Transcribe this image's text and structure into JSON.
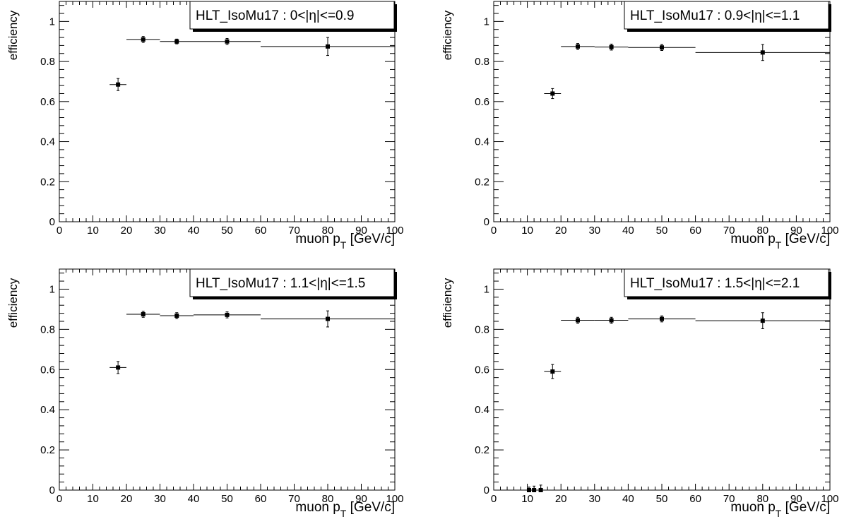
{
  "chart_data": [
    {
      "type": "scatter",
      "legend": "HLT_IsoMu17 : 0<|η|<=0.9",
      "xlabel": "muon p_T [GeV/c]",
      "ylabel": "efficiency",
      "xlim": [
        0,
        100
      ],
      "ylim": [
        0,
        1.1
      ],
      "xticks": [
        0,
        10,
        20,
        30,
        40,
        50,
        60,
        70,
        80,
        90,
        100
      ],
      "yticks": [
        0,
        0.2,
        0.4,
        0.6,
        0.8,
        1
      ],
      "points": [
        {
          "x": 17.5,
          "xerr": 2.5,
          "y": 0.685,
          "yerr": 0.03
        },
        {
          "x": 25,
          "xerr": 5,
          "y": 0.91,
          "yerr": 0.015
        },
        {
          "x": 35,
          "xerr": 5,
          "y": 0.9,
          "yerr": 0.012
        },
        {
          "x": 50,
          "xerr": 10,
          "y": 0.9,
          "yerr": 0.015
        },
        {
          "x": 80,
          "xerr": 20,
          "y": 0.875,
          "yerr": 0.045
        }
      ]
    },
    {
      "type": "scatter",
      "legend": "HLT_IsoMu17 : 0.9<|η|<=1.1",
      "xlabel": "muon p_T [GeV/c]",
      "ylabel": "efficiency",
      "xlim": [
        0,
        100
      ],
      "ylim": [
        0,
        1.1
      ],
      "xticks": [
        0,
        10,
        20,
        30,
        40,
        50,
        60,
        70,
        80,
        90,
        100
      ],
      "yticks": [
        0,
        0.2,
        0.4,
        0.6,
        0.8,
        1
      ],
      "points": [
        {
          "x": 17.5,
          "xerr": 2.5,
          "y": 0.64,
          "yerr": 0.025
        },
        {
          "x": 25,
          "xerr": 5,
          "y": 0.875,
          "yerr": 0.015
        },
        {
          "x": 35,
          "xerr": 5,
          "y": 0.872,
          "yerr": 0.015
        },
        {
          "x": 50,
          "xerr": 10,
          "y": 0.87,
          "yerr": 0.015
        },
        {
          "x": 80,
          "xerr": 20,
          "y": 0.845,
          "yerr": 0.04
        }
      ]
    },
    {
      "type": "scatter",
      "legend": "HLT_IsoMu17 : 1.1<|η|<=1.5",
      "xlabel": "muon p_T [GeV/c]",
      "ylabel": "efficiency",
      "xlim": [
        0,
        100
      ],
      "ylim": [
        0,
        1.1
      ],
      "xticks": [
        0,
        10,
        20,
        30,
        40,
        50,
        60,
        70,
        80,
        90,
        100
      ],
      "yticks": [
        0,
        0.2,
        0.4,
        0.6,
        0.8,
        1
      ],
      "points": [
        {
          "x": 17.5,
          "xerr": 2.5,
          "y": 0.61,
          "yerr": 0.03
        },
        {
          "x": 25,
          "xerr": 5,
          "y": 0.875,
          "yerr": 0.015
        },
        {
          "x": 35,
          "xerr": 5,
          "y": 0.868,
          "yerr": 0.015
        },
        {
          "x": 50,
          "xerr": 10,
          "y": 0.872,
          "yerr": 0.015
        },
        {
          "x": 80,
          "xerr": 20,
          "y": 0.852,
          "yerr": 0.04
        }
      ]
    },
    {
      "type": "scatter",
      "legend": "HLT_IsoMu17 : 1.5<|η|<=2.1",
      "xlabel": "muon p_T [GeV/c]",
      "ylabel": "efficiency",
      "xlim": [
        0,
        100
      ],
      "ylim": [
        0,
        1.1
      ],
      "xticks": [
        0,
        10,
        20,
        30,
        40,
        50,
        60,
        70,
        80,
        90,
        100
      ],
      "yticks": [
        0,
        0.2,
        0.4,
        0.6,
        0.8,
        1
      ],
      "points": [
        {
          "x": 10.5,
          "xerr": 0.5,
          "y": 0.0,
          "yerr": 0.015
        },
        {
          "x": 12,
          "xerr": 1,
          "y": 0.0,
          "yerr": 0.02
        },
        {
          "x": 14,
          "xerr": 1,
          "y": 0.0,
          "yerr": 0.025
        },
        {
          "x": 17.5,
          "xerr": 2.5,
          "y": 0.59,
          "yerr": 0.035
        },
        {
          "x": 25,
          "xerr": 5,
          "y": 0.845,
          "yerr": 0.015
        },
        {
          "x": 35,
          "xerr": 5,
          "y": 0.845,
          "yerr": 0.015
        },
        {
          "x": 50,
          "xerr": 10,
          "y": 0.852,
          "yerr": 0.015
        },
        {
          "x": 80,
          "xerr": 20,
          "y": 0.843,
          "yerr": 0.04
        }
      ]
    }
  ]
}
